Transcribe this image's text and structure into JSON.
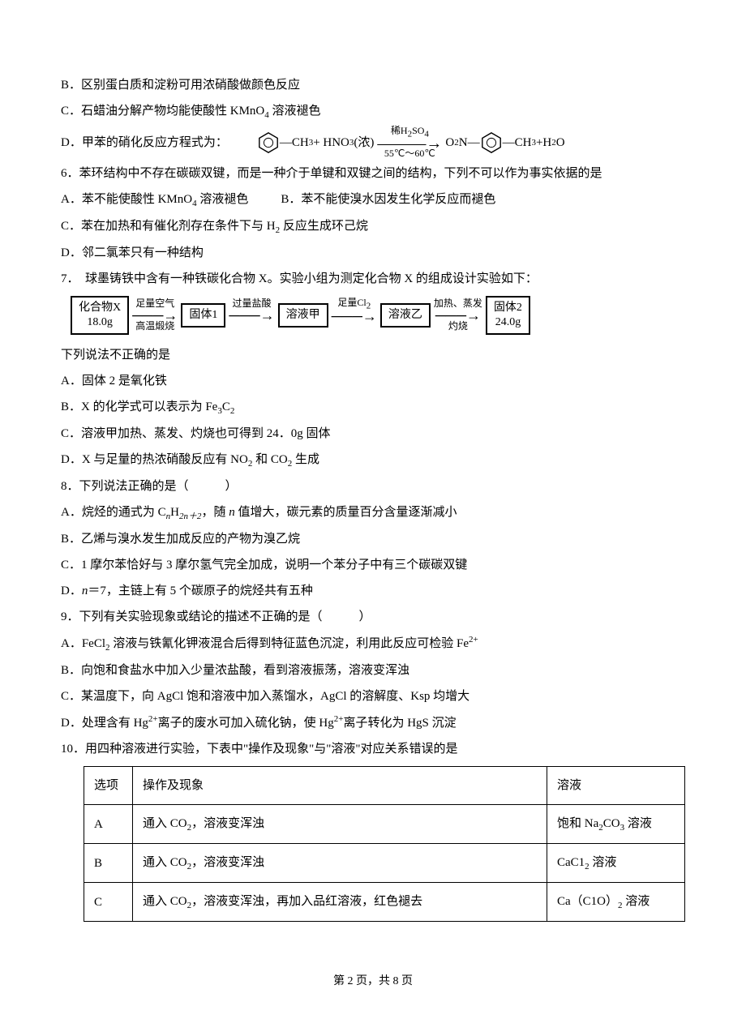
{
  "q5": {
    "b": "B．区别蛋白质和淀粉可用浓硝酸做颜色反应",
    "c_pre": "C．石蜡油分解产物均能使酸性 KMnO",
    "c_sub": "4",
    "c_post": " 溶液褪色",
    "d_label": "D．甲苯的硝化反应方程式为：",
    "reaction": {
      "reagent1_sub": "3",
      "reagent1": "—CH",
      "hno3_pre": "+ HNO",
      "hno3_sub": "3",
      "hno3_post": "(浓)",
      "arrow_top_pre": "稀H",
      "arrow_top_sub": "2",
      "arrow_top_mid": "SO",
      "arrow_top_sub2": "4",
      "arrow_bot": "55℃～60℃",
      "prod_pre": "O",
      "prod_sub1": "2",
      "prod_mid": "N—",
      "prod_post": "—CH",
      "prod_sub2": "3",
      "tail_pre": "+H",
      "tail_sub": "2",
      "tail_post": "O"
    }
  },
  "q6": {
    "stem": "6．苯环结构中不存在碳碳双键，而是一种介于单键和双键之间的结构，下列不可以作为事实依据的是",
    "a_pre": "A．苯不能使酸性 KMnO",
    "a_sub": "4",
    "a_post": " 溶液褪色",
    "b": "B．苯不能使溴水因发生化学反应而褪色",
    "c_pre": "C．苯在加热和有催化剂存在条件下与 H",
    "c_sub": "2",
    "c_post": " 反应生成环己烷",
    "d": "D．邻二氯苯只有一种结构"
  },
  "q7": {
    "stem": "7．　球墨铸铁中含有一种铁碳化合物 X。实验小组为测定化合物 X 的组成设计实验如下：",
    "flow": {
      "box1_l1": "化合物X",
      "box1_l2": "18.0g",
      "a1_t": "足量空气",
      "a1_b": "高温煅烧",
      "box2": "固体1",
      "a2_t": "过量盐酸",
      "box3": "溶液甲",
      "a3_t_pre": "足量Cl",
      "a3_t_sub": "2",
      "box4": "溶液乙",
      "a4_t": "加热、蒸发",
      "a4_b": "灼烧",
      "box5_l1": "固体2",
      "box5_l2": "24.0g"
    },
    "sub": "下列说法不正确的是",
    "a": "A．固体 2 是氧化铁",
    "b_pre": "B．X 的化学式可以表示为 Fe",
    "b_sub1": "3",
    "b_mid": "C",
    "b_sub2": "2",
    "c": "C．溶液甲加热、蒸发、灼烧也可得到 24．0g 固体",
    "d_pre": "D．X 与足量的热浓硝酸反应有 NO",
    "d_sub1": "2",
    "d_mid": " 和 CO",
    "d_sub2": "2",
    "d_post": " 生成"
  },
  "q8": {
    "stem": "8．下列说法正确的是（　　　）",
    "a_pre": "A．烷烃的通式为 C",
    "a_n": "n",
    "a_mid": "H",
    "a_2n": "2n＋2",
    "a_post": "，随 ",
    "a_n2": "n",
    "a_post2": " 值增大，碳元素的质量百分含量逐渐减小",
    "b": "B．乙烯与溴水发生加成反应的产物为溴乙烷",
    "c": "C．1 摩尔苯恰好与 3 摩尔氢气完全加成，说明一个苯分子中有三个碳碳双键",
    "d_pre": "D．",
    "d_n": "n",
    "d_post": "＝7，主链上有 5 个碳原子的烷烃共有五种"
  },
  "q9": {
    "stem": "9．下列有关实验现象或结论的描述不正确的是（　　　）",
    "a_pre": "A．FeCl",
    "a_sub1": "2",
    "a_mid": " 溶液与铁氰化钾液混合后得到特征蓝色沉淀，利用此反应可检验 Fe",
    "a_sup": "2+",
    "b": "B．向饱和食盐水中加入少量浓盐酸，看到溶液振荡，溶液变浑浊",
    "c": "C．某温度下，向 AgCl 饱和溶液中加入蒸馏水，AgCl 的溶解度、Ksp 均增大",
    "d_pre": "D．处理含有 Hg",
    "d_sup1": "2+",
    "d_mid": "离子的废水可加入硫化钠，使 Hg",
    "d_sup2": "2+",
    "d_post": "离子转化为 HgS 沉淀"
  },
  "q10": {
    "stem": "10．用四种溶液进行实验，下表中\"操作及现象\"与\"溶液\"对应关系错误的是",
    "table": {
      "h1": "选项",
      "h2": "操作及现象",
      "h3": "溶液",
      "rows": [
        {
          "k": "A",
          "op_pre": "通入 CO",
          "op_sub": "2",
          "op_post": "，溶液变浑浊",
          "sol_pre": "饱和 Na",
          "sol_sub1": "2",
          "sol_mid": "CO",
          "sol_sub2": "3",
          "sol_post": " 溶液"
        },
        {
          "k": "B",
          "op_pre": "通入 CO",
          "op_sub": "2",
          "op_post": "，溶液变浑浊",
          "sol_pre": "CaC1",
          "sol_sub1": "2",
          "sol_mid": "",
          "sol_sub2": "",
          "sol_post": " 溶液"
        },
        {
          "k": "C",
          "op_pre": "通入 CO",
          "op_sub": "2",
          "op_post": "，溶液变浑浊，再加入品红溶液，红色褪去",
          "sol_pre": "Ca（C1O）",
          "sol_sub1": "2",
          "sol_mid": "",
          "sol_sub2": "",
          "sol_post": " 溶液"
        }
      ]
    }
  },
  "footer": "第 2 页，共 8 页"
}
